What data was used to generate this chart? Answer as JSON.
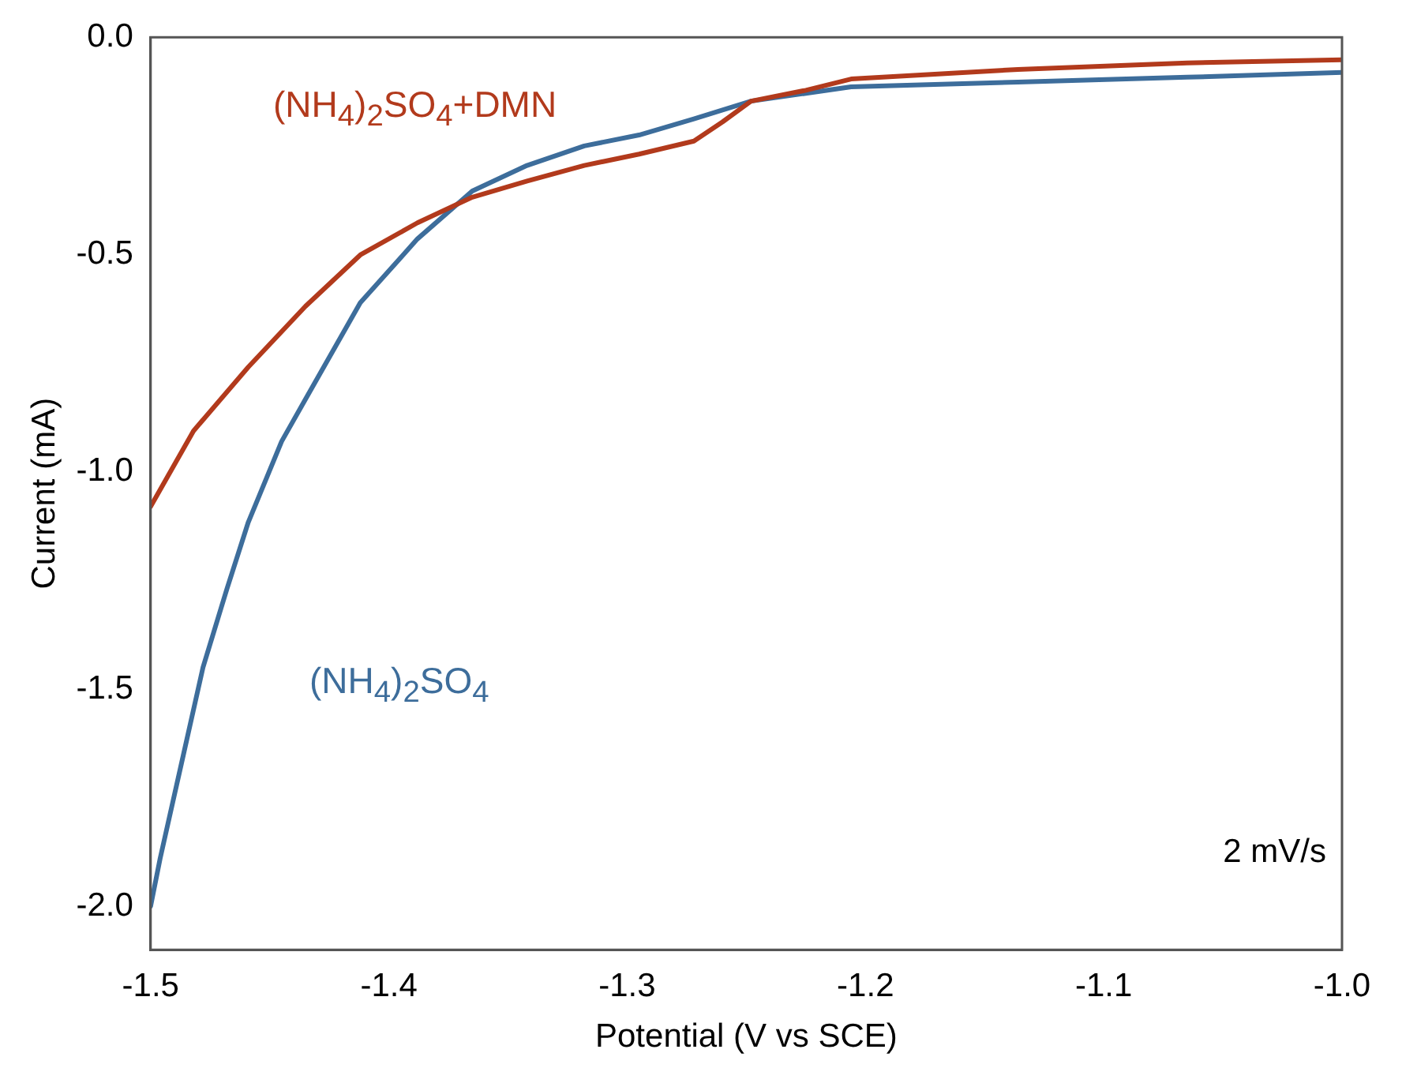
{
  "chart_data": {
    "type": "line",
    "xlabel": "Potential (V vs SCE)",
    "ylabel": "Current (mA)",
    "annotations": [
      "2 mV/s"
    ],
    "xlim": [
      -1.5,
      -1.0
    ],
    "xticks": [
      -1.5,
      -1.4,
      -1.3,
      -1.2,
      -1.1,
      {
        "value": -1,
        "label": "-1.0"
      }
    ],
    "ylim": [
      -2.1,
      0
    ],
    "yticks": [
      {
        "value": 0,
        "label": "0.0"
      },
      {
        "value": -0.5,
        "label": "-0.5"
      },
      {
        "value": -1,
        "label": "-1.0"
      },
      {
        "value": -1.5,
        "label": "-1.5"
      },
      {
        "value": -2,
        "label": "-2.0"
      }
    ],
    "grid": false,
    "legend": false,
    "marker": "none",
    "line_style": "solid",
    "series": [
      {
        "name": "(NH$_{4}$)$_{2}$SO$_{4}$+DMN",
        "color": "#b23a1c",
        "x": [
          -1.5,
          -1.482,
          -1.459,
          -1.435,
          -1.412,
          -1.388,
          -1.365,
          -1.342,
          -1.318,
          -1.295,
          -1.272,
          -1.26,
          -1.248,
          -1.225,
          -1.206,
          -1.136,
          -1.065,
          -1.0
        ],
        "values": [
          -1.08,
          -0.906,
          -0.759,
          -0.619,
          -0.501,
          -0.427,
          -0.368,
          -0.331,
          -0.295,
          -0.269,
          -0.239,
          -0.195,
          -0.147,
          -0.122,
          -0.096,
          -0.074,
          -0.059,
          -0.052
        ]
      },
      {
        "name": "(NH$_{4}$)$_{2}$SO$_{4}$",
        "color": "#3d6d9b",
        "x": [
          -1.5,
          -1.496,
          -1.487,
          -1.478,
          -1.468,
          -1.459,
          -1.445,
          -1.435,
          -1.412,
          -1.388,
          -1.365,
          -1.342,
          -1.318,
          -1.295,
          -1.272,
          -1.248,
          -1.206,
          -1.136,
          -1.065,
          -1.0
        ],
        "values": [
          -2.0,
          -1.89,
          -1.67,
          -1.45,
          -1.27,
          -1.116,
          -0.93,
          -0.833,
          -0.611,
          -0.464,
          -0.354,
          -0.295,
          -0.25,
          -0.225,
          -0.188,
          -0.147,
          -0.114,
          -0.103,
          -0.092,
          -0.081
        ]
      }
    ]
  }
}
